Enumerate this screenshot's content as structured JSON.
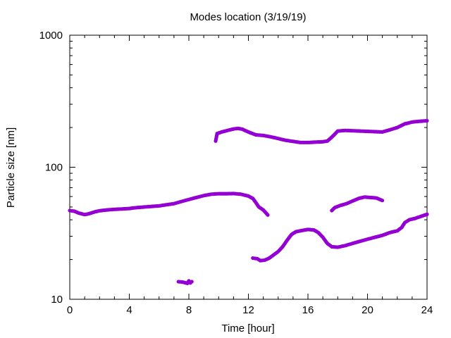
{
  "chart_data": {
    "type": "scatter",
    "title": "Modes location (3/19/19)",
    "xlabel": "Time [hour]",
    "ylabel": "Particle size [nm]",
    "xlim": [
      0,
      24
    ],
    "ylim": [
      10,
      1000
    ],
    "yscale": "log",
    "grid": false,
    "legend": "none",
    "xticks": [
      0,
      4,
      8,
      12,
      16,
      20,
      24
    ],
    "yticks": [
      10,
      100,
      1000
    ],
    "marker_color": "#9400d3",
    "series": [
      {
        "points": [
          [
            0.0,
            47
          ],
          [
            0.3,
            46.5
          ],
          [
            0.6,
            45
          ],
          [
            1.0,
            43.8
          ],
          [
            1.3,
            44.5
          ],
          [
            1.7,
            46
          ],
          [
            2.0,
            46.8
          ],
          [
            2.5,
            47.5
          ],
          [
            3.0,
            48
          ],
          [
            3.5,
            48.3
          ],
          [
            4.0,
            48.7
          ],
          [
            4.5,
            49.5
          ],
          [
            5.0,
            50
          ],
          [
            5.5,
            50.5
          ],
          [
            6.0,
            51
          ],
          [
            6.5,
            52
          ],
          [
            7.0,
            53
          ],
          [
            7.5,
            55
          ],
          [
            8.0,
            57
          ],
          [
            8.5,
            59
          ],
          [
            9.0,
            61
          ],
          [
            9.5,
            62.5
          ],
          [
            10.0,
            63
          ],
          [
            10.5,
            63
          ],
          [
            11.0,
            63.2
          ],
          [
            11.5,
            62.5
          ],
          [
            12.0,
            60.5
          ],
          [
            12.3,
            58
          ],
          [
            12.5,
            54
          ],
          [
            12.7,
            50
          ],
          [
            13.0,
            47.5
          ],
          [
            13.3,
            43.5
          ]
        ]
      },
      {
        "points": [
          [
            7.3,
            13.6
          ],
          [
            7.6,
            13.5
          ],
          [
            7.9,
            13.2
          ],
          [
            8.0,
            13.8
          ],
          [
            8.1,
            13.3
          ],
          [
            8.2,
            13.6
          ]
        ]
      },
      {
        "points": [
          [
            9.8,
            158
          ],
          [
            9.9,
            180
          ],
          [
            10.2,
            185
          ],
          [
            10.6,
            190
          ],
          [
            11.0,
            195
          ],
          [
            11.3,
            197
          ],
          [
            11.6,
            194
          ],
          [
            12.0,
            185
          ],
          [
            12.5,
            176
          ],
          [
            13.0,
            174
          ],
          [
            13.5,
            170
          ],
          [
            14.0,
            165
          ],
          [
            14.5,
            160
          ],
          [
            15.0,
            157
          ],
          [
            15.5,
            154
          ],
          [
            16.0,
            154
          ],
          [
            16.5,
            155
          ],
          [
            17.0,
            156
          ],
          [
            17.3,
            158
          ],
          [
            17.5,
            165
          ],
          [
            17.8,
            178
          ],
          [
            18.0,
            188
          ],
          [
            18.5,
            190
          ],
          [
            19.0,
            189
          ],
          [
            19.5,
            188
          ],
          [
            20.0,
            187
          ],
          [
            20.5,
            186
          ],
          [
            21.0,
            185
          ],
          [
            21.5,
            192
          ],
          [
            22.0,
            200
          ],
          [
            22.5,
            213
          ],
          [
            23.0,
            220
          ],
          [
            23.5,
            223
          ],
          [
            24.0,
            225
          ]
        ]
      },
      {
        "points": [
          [
            12.3,
            20.5
          ],
          [
            12.6,
            20.3
          ],
          [
            12.8,
            19.6
          ],
          [
            13.1,
            19.8
          ],
          [
            13.4,
            20.5
          ],
          [
            13.7,
            21.7
          ],
          [
            14.0,
            23
          ],
          [
            14.3,
            25
          ],
          [
            14.6,
            28
          ],
          [
            14.9,
            31
          ],
          [
            15.2,
            32.5
          ],
          [
            15.6,
            33.2
          ],
          [
            16.0,
            33.8
          ],
          [
            16.4,
            33.5
          ],
          [
            16.7,
            32
          ],
          [
            17.0,
            29.5
          ],
          [
            17.3,
            26.5
          ],
          [
            17.6,
            25
          ],
          [
            18.0,
            24.8
          ],
          [
            18.5,
            25.5
          ],
          [
            19.0,
            26.5
          ],
          [
            19.5,
            27.5
          ],
          [
            20.0,
            28.5
          ],
          [
            20.5,
            29.5
          ],
          [
            21.0,
            30.5
          ],
          [
            21.5,
            32
          ],
          [
            22.0,
            33
          ],
          [
            22.3,
            35
          ],
          [
            22.5,
            38
          ],
          [
            22.8,
            40
          ],
          [
            23.2,
            41
          ],
          [
            23.6,
            42.5
          ],
          [
            24.0,
            44
          ]
        ]
      },
      {
        "points": [
          [
            17.6,
            47
          ],
          [
            17.8,
            49.5
          ],
          [
            18.2,
            51.5
          ],
          [
            18.6,
            53
          ],
          [
            19.0,
            55.5
          ],
          [
            19.4,
            58
          ],
          [
            19.8,
            59.5
          ],
          [
            20.2,
            59
          ],
          [
            20.6,
            58.5
          ],
          [
            21.0,
            56
          ]
        ]
      }
    ]
  }
}
